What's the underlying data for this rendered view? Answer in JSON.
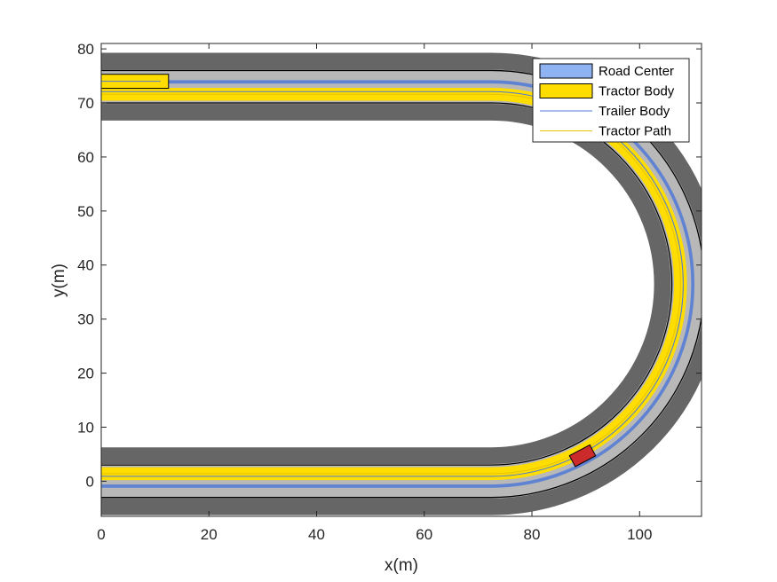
{
  "chart_data": {
    "type": "line",
    "title": "",
    "xlabel": "x(m)",
    "ylabel": "y(m)",
    "xlim": [
      0,
      111.5
    ],
    "ylim": [
      -6.5,
      81
    ],
    "xticks": [
      0,
      20,
      40,
      60,
      80,
      100
    ],
    "yticks": [
      0,
      10,
      20,
      30,
      40,
      50,
      60,
      70,
      80
    ],
    "grid": false,
    "legend_position": "top-right",
    "road": {
      "arc_center": [
        72.5,
        36.5
      ],
      "arc_radius": 36.5,
      "straight_start_x": 0,
      "straight_end_x": 43,
      "edges": [
        {
          "role": "shoulder",
          "offset": 6.3,
          "color": "#666666"
        },
        {
          "role": "surface",
          "offset": 3.2,
          "color": "#b8b8b8"
        },
        {
          "role": "lane-boundary",
          "offset": 3.0,
          "color": "#000000"
        }
      ]
    },
    "series": [
      {
        "name": "Road Center",
        "kind": "patch",
        "color": "#8fb3f2",
        "edge_color": "#4f78d6",
        "center_offset": 0,
        "width": 0.6
      },
      {
        "name": "Tractor Body",
        "kind": "patch",
        "color": "#ffdd00",
        "edge_color": "#d9b800",
        "center_offset": -1.4,
        "width": 2.4
      },
      {
        "name": "Trailer Body",
        "kind": "line",
        "color": "#4f78d6",
        "center_offset": -0.9
      },
      {
        "name": "Tractor Path",
        "kind": "line",
        "color": "#e8c400",
        "center_offset": -1.4
      }
    ],
    "vehicles": [
      {
        "kind": "trailer",
        "x": [
          0,
          12.5
        ],
        "y": 74,
        "length": 12.5,
        "width": 2.6,
        "face": "#ffdd00",
        "edge": "#000000"
      },
      {
        "kind": "tractor",
        "at_angle_deg": 62,
        "color": "#cc2b2b"
      },
      {
        "kind": "tractor",
        "at_angle_deg": -62,
        "color": "#cc2b2b"
      }
    ],
    "colors": {
      "axes": "#262626",
      "background": "#ffffff"
    }
  }
}
